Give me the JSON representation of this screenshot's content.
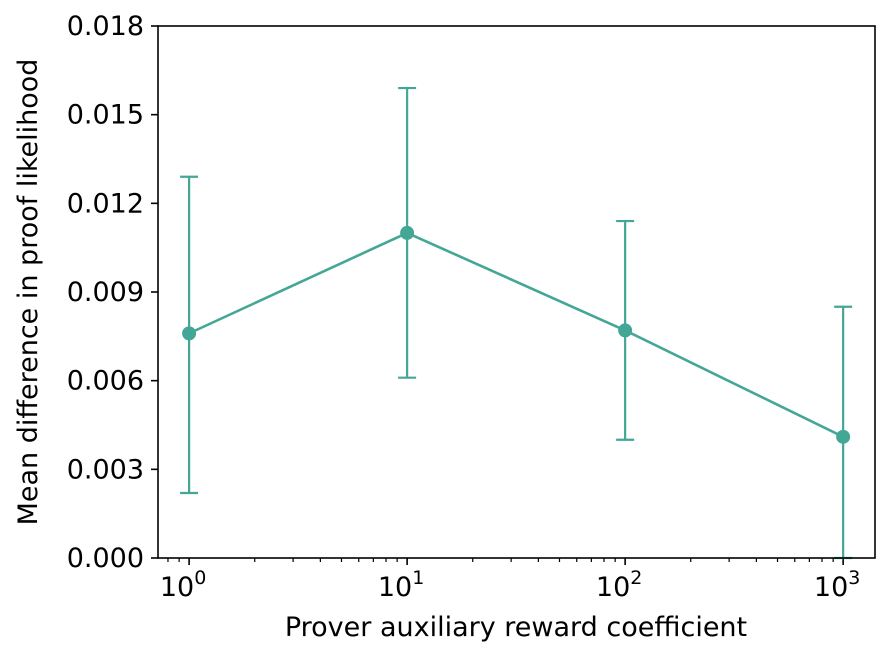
{
  "chart_data": {
    "type": "line",
    "title": "",
    "xlabel": "Prover auxiliary reward coefficient",
    "ylabel": "Mean difference in proof likelihood",
    "xscale": "log",
    "xlim": [
      0.72,
      1400
    ],
    "ylim": [
      0,
      0.018
    ],
    "xticks": [
      {
        "value": 1,
        "base": "10",
        "exp": "0"
      },
      {
        "value": 10,
        "base": "10",
        "exp": "1"
      },
      {
        "value": 100,
        "base": "10",
        "exp": "2"
      },
      {
        "value": 1000,
        "base": "10",
        "exp": "3"
      }
    ],
    "yticks": [
      {
        "value": 0,
        "label": "0.000"
      },
      {
        "value": 0.003,
        "label": "0.003"
      },
      {
        "value": 0.006,
        "label": "0.006"
      },
      {
        "value": 0.009,
        "label": "0.009"
      },
      {
        "value": 0.012,
        "label": "0.012"
      },
      {
        "value": 0.015,
        "label": "0.015"
      },
      {
        "value": 0.018,
        "label": "0.018"
      }
    ],
    "grid": false,
    "series": [
      {
        "color": "#44a795",
        "x": [
          1,
          10,
          100,
          1000
        ],
        "y": [
          0.0076,
          0.011,
          0.0077,
          0.0041
        ],
        "err_low": [
          0.0022,
          0.0061,
          0.004,
          0.0
        ],
        "err_high": [
          0.0129,
          0.0159,
          0.0114,
          0.0085
        ]
      }
    ]
  }
}
